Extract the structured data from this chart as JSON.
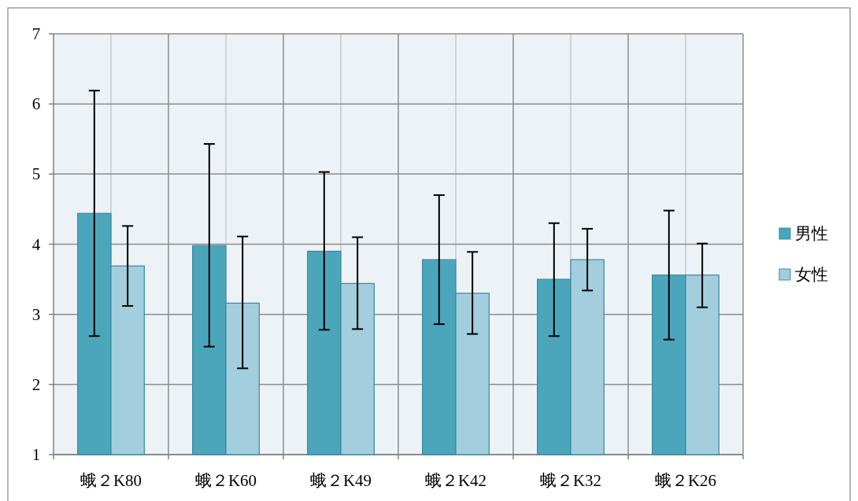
{
  "chart_data": {
    "type": "bar",
    "categories": [
      "蛾２K80",
      "蛾２K60",
      "蛾２K49",
      "蛾２K42",
      "蛾２K32",
      "蛾２K26"
    ],
    "series": [
      {
        "name": "男性",
        "color": "#4ba6bc",
        "values": [
          4.44,
          3.98,
          3.9,
          3.78,
          3.5,
          3.56
        ],
        "errors": [
          [
            2.69,
            6.19
          ],
          [
            2.54,
            5.43
          ],
          [
            2.78,
            5.03
          ],
          [
            2.86,
            4.7
          ],
          [
            2.69,
            4.3
          ],
          [
            2.64,
            4.48
          ]
        ]
      },
      {
        "name": "女性",
        "color": "#a3cedd",
        "values": [
          3.69,
          3.16,
          3.44,
          3.3,
          3.78,
          3.56
        ],
        "errors": [
          [
            3.12,
            4.26
          ],
          [
            2.23,
            4.11
          ],
          [
            2.79,
            4.1
          ],
          [
            2.72,
            3.89
          ],
          [
            3.34,
            4.22
          ],
          [
            3.1,
            4.01
          ]
        ]
      }
    ],
    "ylim": [
      1,
      7
    ],
    "yticks": [
      1,
      2,
      3,
      4,
      5,
      6,
      7
    ],
    "grid": true,
    "legend": "right"
  }
}
